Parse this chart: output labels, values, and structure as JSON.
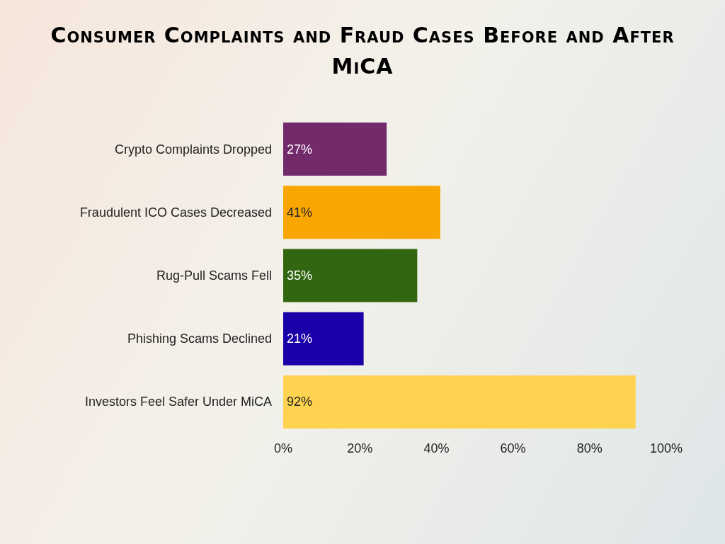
{
  "chart_data": {
    "type": "bar",
    "orientation": "horizontal",
    "title": "Consumer Complaints and Fraud Cases Before and After MiCA",
    "categories": [
      "Crypto Complaints Dropped",
      "Fraudulent ICO Cases Decreased",
      "Rug-Pull Scams Fell",
      "Phishing Scams Declined",
      "Investors Feel Safer Under MiCA"
    ],
    "values": [
      27,
      41,
      35,
      21,
      92
    ],
    "colors": [
      "#722a6b",
      "#f9a602",
      "#336611",
      "#1a00a8",
      "#ffd34f"
    ],
    "xlim": [
      0,
      100
    ],
    "xticks": [
      {
        "value": 0,
        "label": "0%"
      },
      {
        "value": 20,
        "label": "20%"
      },
      {
        "value": 40,
        "label": "40%"
      },
      {
        "value": 60,
        "label": "60%"
      },
      {
        "value": 80,
        "label": "80%"
      },
      {
        "value": 100,
        "label": "100%"
      }
    ],
    "value_labels": [
      "27%",
      "41%",
      "35%",
      "21%",
      "92%"
    ],
    "grid": false
  }
}
